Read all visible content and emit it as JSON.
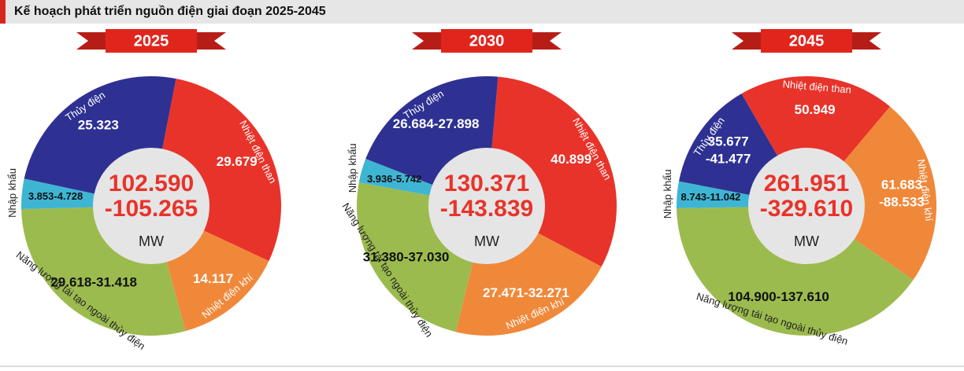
{
  "header": {
    "title": "Kế hoạch phát triển nguồn điện giai đoạn 2025-2045"
  },
  "chart_data": [
    {
      "type": "pie",
      "title": "2025",
      "categories": [
        "Nhiệt điện than",
        "Nhiệt điện khí",
        "Năng lượng tái tạo ngoài thủy điện",
        "Nhập khẩu",
        "Thủy điện"
      ],
      "values": [
        29679,
        14117,
        29618,
        3853,
        25323
      ],
      "value_labels": [
        "29.679",
        "14.117",
        "29.618-31.418",
        "3.853-4.728",
        "25.323"
      ],
      "colors": [
        "#e8332a",
        "#f0883a",
        "#9cbb4f",
        "#3fb5d4",
        "#2e3192"
      ],
      "center_label": [
        "102.590",
        "-105.265"
      ],
      "unit": "MW"
    },
    {
      "type": "pie",
      "title": "2030",
      "categories": [
        "Nhiệt điện than",
        "Nhiệt điện khí",
        "Năng lượng tái tạo ngoài thủy điện",
        "Nhập khẩu",
        "Thủy điện"
      ],
      "values": [
        40899,
        27471,
        31380,
        3936,
        26684
      ],
      "value_labels": [
        "40.899",
        "27.471-32.271",
        "31.380-37.030",
        "3.936-5.742",
        "26.684-27.898"
      ],
      "colors": [
        "#e8332a",
        "#f0883a",
        "#9cbb4f",
        "#3fb5d4",
        "#2e3192"
      ],
      "center_label": [
        "130.371",
        "-143.839"
      ],
      "unit": "MW"
    },
    {
      "type": "pie",
      "title": "2045",
      "categories": [
        "Nhiệt điện than",
        "Nhiệt điện khí",
        "Năng lượng tái tạo ngoài thủy điện",
        "Nhập khẩu",
        "Thủy điện"
      ],
      "values": [
        50949,
        61683,
        104900,
        8743,
        35677
      ],
      "value_labels": [
        "50.949",
        [
          "61.683",
          "-88.533"
        ],
        "104.900-137.610",
        "8.743-11.042",
        [
          "35.677",
          "-41.477"
        ]
      ],
      "colors": [
        "#e8332a",
        "#f0883a",
        "#9cbb4f",
        "#3fb5d4",
        "#2e3192"
      ],
      "center_label": [
        "261.951",
        "-329.610"
      ],
      "unit": "MW"
    }
  ]
}
